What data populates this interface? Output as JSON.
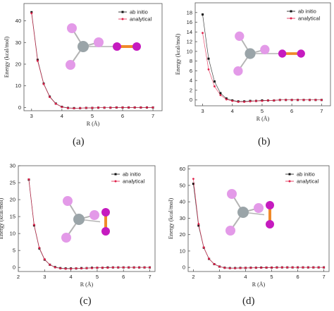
{
  "colors": {
    "ab_initio": "#111111",
    "analytical": "#e0204a",
    "carbon_atom": "#9aa4a8",
    "fluorine_atom": "#e39ae8",
    "iodine_atom": "#c51bbf",
    "bond_orange": "#f08a2a",
    "bond_grey": "#b4b4b4"
  },
  "chart_data": [
    {
      "panel": "a",
      "type": "line",
      "caption": "(a)",
      "xlabel": "R (Å)",
      "ylabel": "Energy (kcal/mol)",
      "xlim": [
        2.75,
        7.3
      ],
      "ylim": [
        -1.5,
        48
      ],
      "xticks": [
        3,
        4,
        5,
        6,
        7
      ],
      "yticks": [
        0,
        10,
        20,
        30,
        40
      ],
      "legend_position": "top-right",
      "molecule_icon": "cf3-iodine-molecule-icon",
      "series": [
        {
          "name": "ab initio",
          "color": "#111111",
          "marker": "square",
          "x": [
            3.0,
            3.2,
            3.4,
            3.6,
            3.8,
            4.0,
            4.2,
            4.4,
            4.6,
            4.8,
            5.0,
            5.2,
            5.4,
            5.6,
            5.8,
            6.0,
            6.2,
            6.4,
            6.6,
            6.8,
            7.0
          ],
          "y": [
            44.0,
            22.0,
            11.0,
            5.0,
            1.8,
            0.3,
            -0.2,
            -0.3,
            -0.3,
            -0.2,
            -0.2,
            -0.1,
            -0.1,
            -0.1,
            0.0,
            0.0,
            0.0,
            0.0,
            0.0,
            0.0,
            0.0
          ]
        },
        {
          "name": "analytical",
          "color": "#e0204a",
          "marker": "circle",
          "x": [
            3.0,
            3.2,
            3.4,
            3.6,
            3.8,
            4.0,
            4.2,
            4.4,
            4.6,
            4.8,
            5.0,
            5.2,
            5.4,
            5.6,
            5.8,
            6.0,
            6.2,
            6.4,
            6.6,
            6.8,
            7.0
          ],
          "y": [
            43.5,
            21.5,
            10.8,
            4.8,
            1.7,
            0.2,
            -0.3,
            -0.4,
            -0.3,
            -0.2,
            -0.2,
            -0.1,
            -0.1,
            -0.1,
            0.0,
            0.0,
            0.0,
            0.0,
            0.0,
            0.0,
            0.0
          ]
        }
      ]
    },
    {
      "panel": "b",
      "type": "line",
      "caption": "(b)",
      "xlabel": "R (Å)",
      "ylabel": "Energy (kcal/mol)",
      "xlim": [
        2.75,
        7.3
      ],
      "ylim": [
        -1.2,
        20
      ],
      "xticks": [
        3,
        4,
        5,
        6,
        7
      ],
      "yticks": [
        0,
        2,
        4,
        6,
        8,
        10,
        12,
        14,
        16,
        18
      ],
      "legend_position": "top-right",
      "molecule_icon": "cf3-iodine-molecule-icon",
      "series": [
        {
          "name": "ab initio",
          "color": "#111111",
          "marker": "square",
          "x": [
            3.0,
            3.2,
            3.4,
            3.6,
            3.8,
            4.0,
            4.2,
            4.4,
            4.6,
            4.8,
            5.0,
            5.2,
            5.4,
            5.6,
            5.8,
            6.0,
            6.2,
            6.4,
            6.6,
            6.8,
            7.0
          ],
          "y": [
            17.6,
            8.5,
            3.8,
            1.4,
            0.3,
            -0.1,
            -0.3,
            -0.3,
            -0.2,
            -0.2,
            -0.1,
            -0.1,
            -0.1,
            0.0,
            0.0,
            0.0,
            0.0,
            0.0,
            0.0,
            0.0,
            0.0
          ]
        },
        {
          "name": "analytical",
          "color": "#e0204a",
          "marker": "circle",
          "x": [
            3.0,
            3.2,
            3.4,
            3.6,
            3.8,
            4.0,
            4.2,
            4.4,
            4.6,
            4.8,
            5.0,
            5.2,
            5.4,
            5.6,
            5.8,
            6.0,
            6.2,
            6.4,
            6.6,
            6.8,
            7.0
          ],
          "y": [
            13.8,
            6.3,
            2.8,
            1.0,
            0.1,
            -0.2,
            -0.4,
            -0.4,
            -0.3,
            -0.2,
            -0.2,
            -0.1,
            -0.1,
            0.0,
            0.0,
            0.0,
            0.0,
            0.0,
            0.0,
            0.0,
            0.0
          ]
        }
      ]
    },
    {
      "panel": "c",
      "type": "line",
      "caption": "(c)",
      "xlabel": "R (Å)",
      "ylabel": "Energy (kcal/mol)",
      "xlim": [
        2.0,
        7.2
      ],
      "ylim": [
        -1.2,
        30
      ],
      "xticks": [
        2,
        3,
        4,
        5,
        6,
        7
      ],
      "yticks": [
        0,
        5,
        10,
        15,
        20,
        25,
        30
      ],
      "legend_position": "top-right",
      "molecule_icon": "cf3-iodine-molecule-icon",
      "series": [
        {
          "name": "ab initio",
          "color": "#111111",
          "marker": "square",
          "x": [
            2.4,
            2.6,
            2.8,
            3.0,
            3.2,
            3.4,
            3.6,
            3.8,
            4.0,
            4.2,
            4.4,
            4.6,
            4.8,
            5.0,
            5.2,
            5.4,
            5.6,
            5.8,
            6.0,
            6.2,
            6.4,
            6.6,
            6.8,
            7.0
          ],
          "y": [
            25.9,
            12.4,
            5.6,
            2.3,
            0.8,
            0.1,
            -0.2,
            -0.3,
            -0.3,
            -0.3,
            -0.2,
            -0.2,
            -0.1,
            -0.1,
            -0.1,
            0.0,
            0.0,
            0.0,
            0.0,
            0.0,
            0.0,
            0.0,
            0.0,
            0.0
          ]
        },
        {
          "name": "analytical",
          "color": "#e0204a",
          "marker": "circle",
          "x": [
            2.4,
            2.6,
            2.8,
            3.0,
            3.2,
            3.4,
            3.6,
            3.8,
            4.0,
            4.2,
            4.4,
            4.6,
            4.8,
            5.0,
            5.2,
            5.4,
            5.6,
            5.8,
            6.0,
            6.2,
            6.4,
            6.6,
            6.8,
            7.0
          ],
          "y": [
            26.0,
            12.6,
            5.8,
            2.4,
            0.8,
            0.0,
            -0.3,
            -0.4,
            -0.4,
            -0.3,
            -0.3,
            -0.2,
            -0.2,
            -0.1,
            -0.1,
            -0.1,
            0.0,
            0.0,
            0.0,
            0.0,
            0.0,
            0.0,
            0.0,
            0.0
          ]
        }
      ]
    },
    {
      "panel": "d",
      "type": "line",
      "caption": "(d)",
      "xlabel": "R (Å)",
      "ylabel": "Energy (kcal/mol)",
      "xlim": [
        1.8,
        7.2
      ],
      "ylim": [
        -2.5,
        62
      ],
      "xticks": [
        2,
        3,
        4,
        5,
        6,
        7
      ],
      "yticks": [
        0,
        10,
        20,
        30,
        40,
        50,
        60
      ],
      "legend_position": "top-right",
      "molecule_icon": "cf3-iodine-molecule-icon",
      "series": [
        {
          "name": "ab initio",
          "color": "#111111",
          "marker": "square",
          "x": [
            2.0,
            2.2,
            2.4,
            2.6,
            2.8,
            3.0,
            3.2,
            3.4,
            3.6,
            3.8,
            4.0,
            4.2,
            4.4,
            4.6,
            4.8,
            5.0,
            5.2,
            5.4,
            5.6,
            5.8,
            6.0,
            6.2,
            6.4,
            6.6,
            6.8,
            7.0
          ],
          "y": [
            51.0,
            25.5,
            12.0,
            5.2,
            2.0,
            0.5,
            -0.2,
            -0.4,
            -0.4,
            -0.3,
            -0.3,
            -0.2,
            -0.2,
            -0.1,
            -0.1,
            -0.1,
            0.0,
            0.0,
            0.0,
            0.0,
            0.0,
            0.0,
            0.0,
            0.0,
            0.0,
            0.0
          ]
        },
        {
          "name": "analytical",
          "color": "#e0204a",
          "marker": "circle",
          "x": [
            2.0,
            2.2,
            2.4,
            2.6,
            2.8,
            3.0,
            3.2,
            3.4,
            3.6,
            3.8,
            4.0,
            4.2,
            4.4,
            4.6,
            4.8,
            5.0,
            5.2,
            5.4,
            5.6,
            5.8,
            6.0,
            6.2,
            6.4,
            6.6,
            6.8,
            7.0
          ],
          "y": [
            54.0,
            26.5,
            12.2,
            5.3,
            2.0,
            0.5,
            -0.3,
            -0.5,
            -0.5,
            -0.4,
            -0.3,
            -0.3,
            -0.2,
            -0.2,
            -0.1,
            -0.1,
            -0.1,
            0.0,
            0.0,
            0.0,
            0.0,
            0.0,
            0.0,
            0.0,
            0.0,
            0.0
          ]
        }
      ]
    }
  ]
}
